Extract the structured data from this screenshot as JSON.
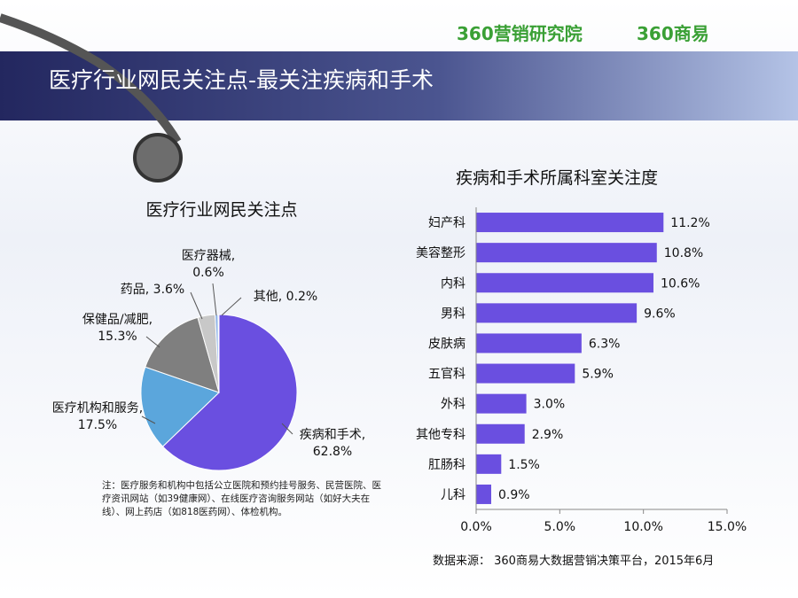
{
  "header": {
    "logo_primary": "360营销研究院",
    "logo_secondary": "360商易",
    "title": "医疗行业网民关注点-最关注疾病和手术"
  },
  "chart_data": [
    {
      "type": "pie",
      "title": "医疗行业网民关注点",
      "categories": [
        "疾病和手术",
        "医疗机构和服务",
        "保健品/减肥",
        "药品",
        "医疗器械",
        "其他"
      ],
      "values": [
        62.8,
        17.5,
        15.3,
        3.6,
        0.6,
        0.2
      ],
      "value_labels": [
        "62.8%",
        "17.5%",
        "15.3%",
        "3.6%",
        "0.6%",
        "0.2%"
      ],
      "colors": [
        "#6a4fe0",
        "#5ba6dc",
        "#7f7f7f",
        "#c8c8c8",
        "#8fb4e6",
        "#9b87ee"
      ]
    },
    {
      "type": "bar",
      "orientation": "horizontal",
      "title": "疾病和手术所属科室关注度",
      "categories": [
        "妇产科",
        "美容整形",
        "内科",
        "男科",
        "皮肤病",
        "五官科",
        "外科",
        "其他专科",
        "肛肠科",
        "儿科"
      ],
      "values": [
        11.2,
        10.8,
        10.6,
        9.6,
        6.3,
        5.9,
        3.0,
        2.9,
        1.5,
        0.9
      ],
      "value_labels": [
        "11.2%",
        "10.8%",
        "10.6%",
        "9.6%",
        "6.3%",
        "5.9%",
        "3.0%",
        "2.9%",
        "1.5%",
        "0.9%"
      ],
      "color": "#6a4fe0",
      "xlim": [
        0,
        15
      ],
      "xticks": [
        {
          "value": 0,
          "label": "0.0%"
        },
        {
          "value": 5,
          "label": "5.0%"
        },
        {
          "value": 10,
          "label": "10.0%"
        },
        {
          "value": 15,
          "label": "15.0%"
        }
      ]
    }
  ],
  "note": "注：医疗服务和机构中包括公立医院和预约挂号服务、民营医院、医疗资讯网站（如39健康网）、在线医疗咨询服务网站（如好大夫在线）、网上药店（如818医药网）、体检机构。",
  "source": "数据来源： 360商易大数据营销决策平台，2015年6月"
}
